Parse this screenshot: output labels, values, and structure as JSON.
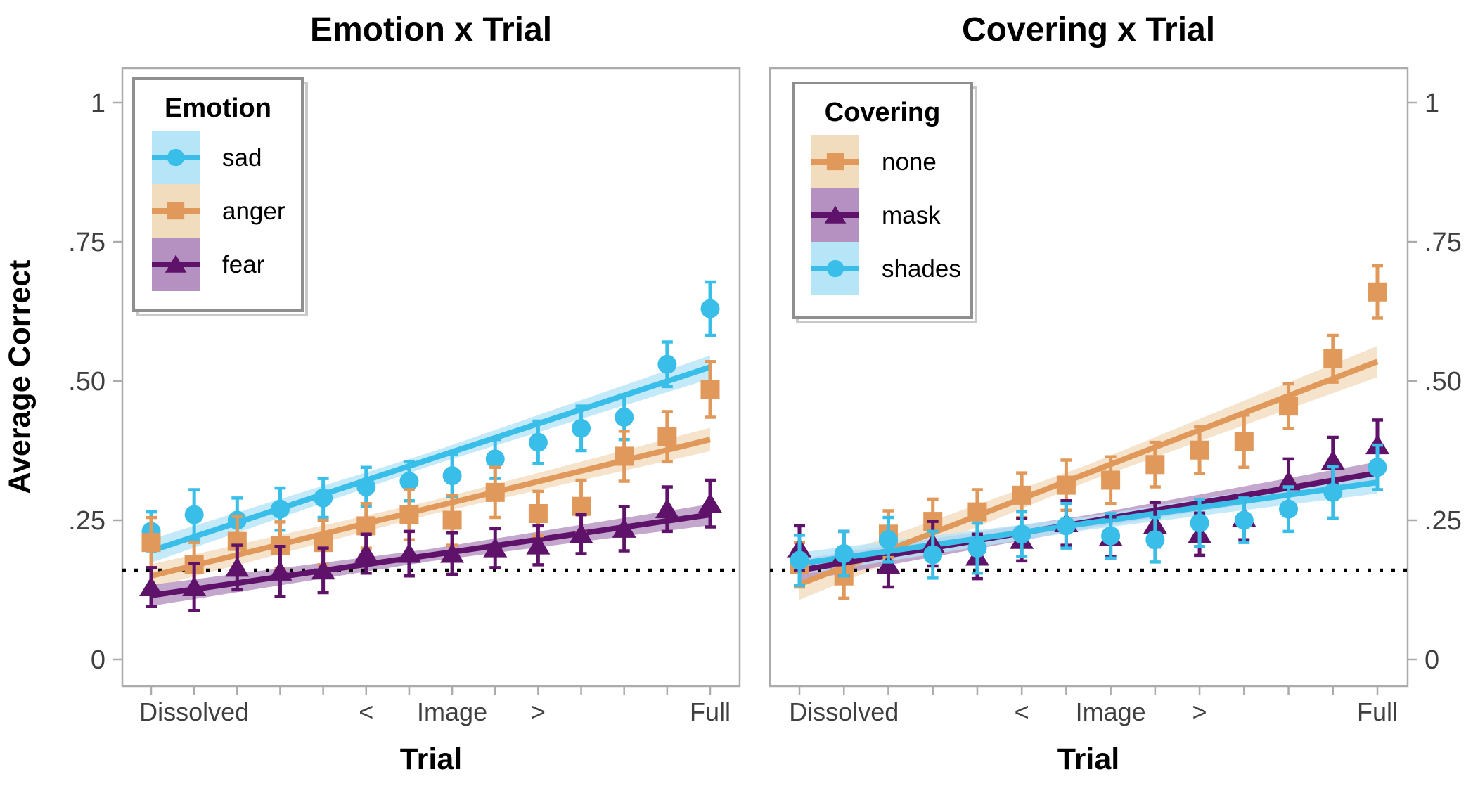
{
  "figure": {
    "y_axis": {
      "label": "Average Correct",
      "tick_values": [
        0,
        0.25,
        0.5,
        0.75,
        1
      ],
      "tick_labels": [
        "0",
        ".25",
        ".50",
        ".75",
        "1"
      ],
      "range": [
        0,
        1
      ]
    },
    "x_axis": {
      "label": "Trial",
      "n_positions": 14,
      "tick_labels": [
        {
          "text": "Dissolved",
          "position": 2
        },
        {
          "text": "<",
          "position": 6
        },
        {
          "text": "Image",
          "position": 8
        },
        {
          "text": ">",
          "position": 10
        },
        {
          "text": "Full",
          "position": 14
        }
      ]
    },
    "chance_level": 0.16
  },
  "colors": {
    "cyan": {
      "main": "#38BEE8",
      "light": "#B5E5F7"
    },
    "orange": {
      "main": "#E0995A",
      "light": "#F2DCBE"
    },
    "purple": {
      "main": "#5E1269",
      "light": "#B591C1"
    },
    "chance_line": "#000000",
    "axis_text": "#3f3f3f",
    "panel_border": "#ABABAB",
    "tick_mark": "#ABABAB",
    "legend_border": "#8F8F8F",
    "legend_shadow": "#C9C9C9"
  },
  "chart_data": [
    {
      "type": "scatter",
      "title": "Emotion x Trial",
      "xlabel": "Trial",
      "ylabel": "Average Correct",
      "legend_title": "Emotion",
      "legend_position": "top-left",
      "x": [
        1,
        2,
        3,
        4,
        5,
        6,
        7,
        8,
        9,
        10,
        11,
        12,
        13,
        14
      ],
      "chance_level": 0.16,
      "series": [
        {
          "name": "sad",
          "marker": "circle",
          "color_key": "cyan",
          "values": [
            0.23,
            0.26,
            0.25,
            0.27,
            0.29,
            0.31,
            0.32,
            0.33,
            0.36,
            0.39,
            0.415,
            0.435,
            0.53,
            0.63
          ],
          "errors": [
            0.035,
            0.045,
            0.04,
            0.038,
            0.035,
            0.035,
            0.035,
            0.038,
            0.035,
            0.038,
            0.04,
            0.04,
            0.04,
            0.048
          ],
          "trend": {
            "start": 0.195,
            "end": 0.525,
            "ci_mid": 0.012,
            "ci_end": 0.021
          }
        },
        {
          "name": "anger",
          "marker": "square",
          "color_key": "orange",
          "values": [
            0.21,
            0.17,
            0.212,
            0.205,
            0.21,
            0.24,
            0.26,
            0.25,
            0.3,
            0.262,
            0.275,
            0.365,
            0.4,
            0.485
          ],
          "errors": [
            0.045,
            0.04,
            0.045,
            0.042,
            0.04,
            0.04,
            0.045,
            0.045,
            0.045,
            0.04,
            0.047,
            0.045,
            0.045,
            0.05
          ],
          "trend": {
            "start": 0.15,
            "end": 0.395,
            "ci_mid": 0.012,
            "ci_end": 0.021
          }
        },
        {
          "name": "fear",
          "marker": "triangle",
          "color_key": "purple",
          "values": [
            0.13,
            0.13,
            0.165,
            0.158,
            0.16,
            0.19,
            0.19,
            0.19,
            0.2,
            0.205,
            0.225,
            0.235,
            0.27,
            0.28
          ],
          "errors": [
            0.035,
            0.042,
            0.04,
            0.045,
            0.04,
            0.035,
            0.04,
            0.037,
            0.035,
            0.035,
            0.035,
            0.04,
            0.04,
            0.042
          ],
          "trend": {
            "start": 0.115,
            "end": 0.26,
            "ci_mid": 0.011,
            "ci_end": 0.019
          }
        }
      ]
    },
    {
      "type": "scatter",
      "title": "Covering x Trial",
      "xlabel": "Trial",
      "ylabel": "Average Correct",
      "legend_title": "Covering",
      "legend_position": "top-left",
      "x": [
        1,
        2,
        3,
        4,
        5,
        6,
        7,
        8,
        9,
        10,
        11,
        12,
        13,
        14
      ],
      "chance_level": 0.16,
      "series": [
        {
          "name": "none",
          "marker": "square",
          "color_key": "orange",
          "values": [
            0.17,
            0.15,
            0.225,
            0.248,
            0.265,
            0.295,
            0.313,
            0.322,
            0.35,
            0.376,
            0.392,
            0.455,
            0.54,
            0.66
          ],
          "errors": [
            0.04,
            0.04,
            0.042,
            0.04,
            0.04,
            0.04,
            0.045,
            0.042,
            0.04,
            0.042,
            0.047,
            0.04,
            0.042,
            0.047
          ],
          "trend": {
            "start": 0.135,
            "end": 0.535,
            "ci_mid": 0.015,
            "ci_end": 0.028
          }
        },
        {
          "name": "mask",
          "marker": "triangle",
          "color_key": "purple",
          "values": [
            0.2,
            0.19,
            0.17,
            0.208,
            0.185,
            0.215,
            0.245,
            0.22,
            0.242,
            0.225,
            0.255,
            0.32,
            0.357,
            0.385
          ],
          "errors": [
            0.04,
            0.04,
            0.04,
            0.04,
            0.04,
            0.038,
            0.04,
            0.036,
            0.04,
            0.038,
            0.04,
            0.04,
            0.042,
            0.045
          ],
          "trend": {
            "start": 0.16,
            "end": 0.335,
            "ci_mid": 0.012,
            "ci_end": 0.02
          }
        },
        {
          "name": "shades",
          "marker": "circle",
          "color_key": "cyan",
          "values": [
            0.178,
            0.19,
            0.215,
            0.188,
            0.2,
            0.225,
            0.24,
            0.222,
            0.215,
            0.245,
            0.25,
            0.27,
            0.3,
            0.345
          ],
          "errors": [
            0.045,
            0.04,
            0.04,
            0.042,
            0.045,
            0.04,
            0.04,
            0.04,
            0.04,
            0.042,
            0.04,
            0.04,
            0.046,
            0.04
          ],
          "trend": {
            "start": 0.172,
            "end": 0.318,
            "ci_mid": 0.012,
            "ci_end": 0.02
          }
        }
      ]
    }
  ]
}
